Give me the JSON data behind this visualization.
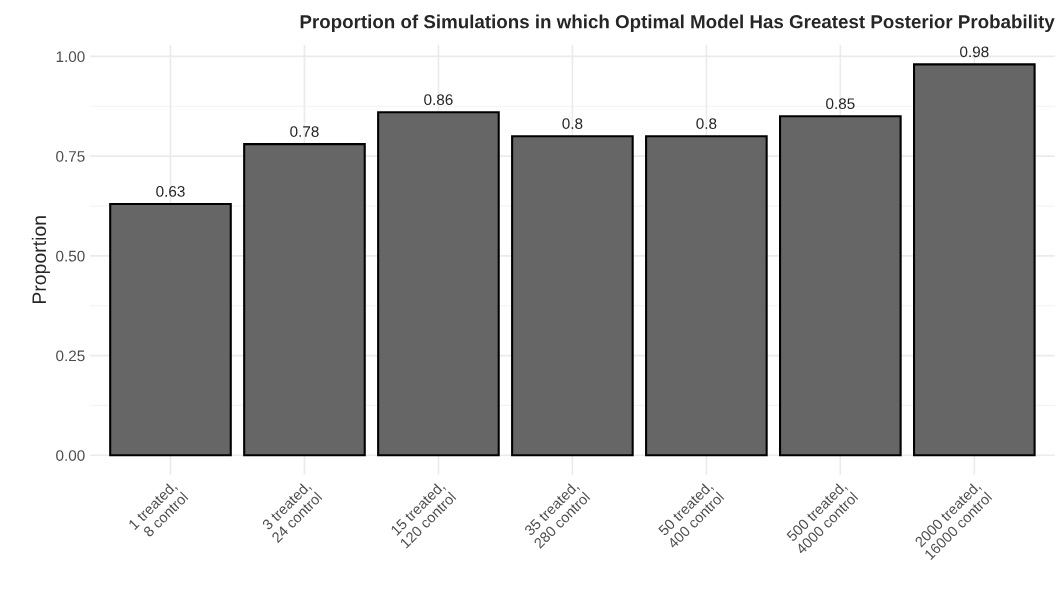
{
  "chart_data": {
    "type": "bar",
    "title": "Proportion of Simulations in which Optimal Model Has Greatest Posterior Probability",
    "ylabel": "Proportion",
    "categories": [
      "1 treated,\n8 control",
      "3 treated,\n24 control",
      "15 treated,\n120 control",
      "35 treated,\n280 control",
      "50 treated,\n400 control",
      "500 treated,\n4000 control",
      "2000 treated,\n16000 control"
    ],
    "values": [
      0.63,
      0.78,
      0.86,
      0.8,
      0.8,
      0.85,
      0.98
    ],
    "color": "#666666",
    "ylim": [
      -0.049,
      1.029
    ],
    "yticks": [
      {
        "value": 0,
        "label": "0.00"
      },
      {
        "value": 0.25,
        "label": "0.25"
      },
      {
        "value": 0.5,
        "label": "0.50"
      },
      {
        "value": 0.75,
        "label": "0.75"
      },
      {
        "value": 1,
        "label": "1.00"
      }
    ],
    "data_labels": true,
    "grid": true
  }
}
